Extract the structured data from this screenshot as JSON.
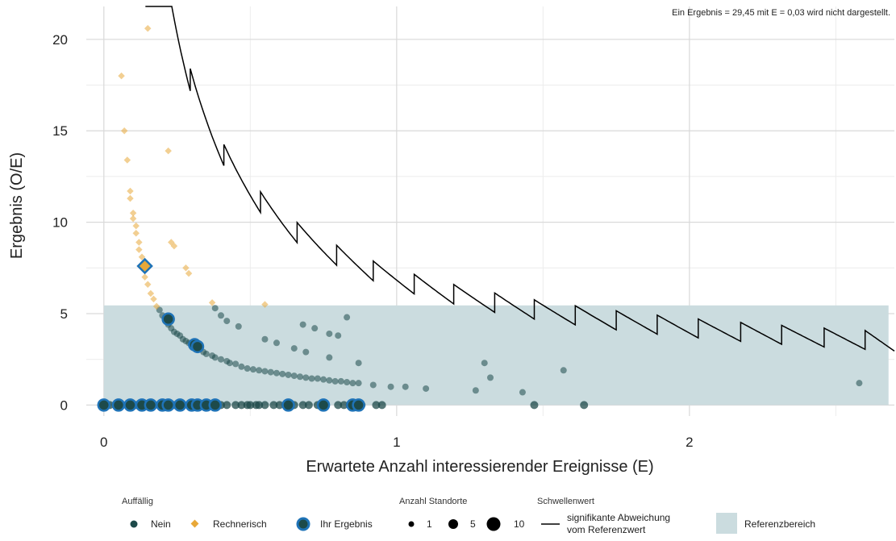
{
  "chart_data": {
    "type": "scatter",
    "note": "Ein Ergebnis = 29,45 mit E = 0,03 wird nicht dargestellt.",
    "xlabel": "Erwartete Anzahl interessierender Ereignisse (E)",
    "ylabel": "Ergebnis (O/E)",
    "xlim": [
      -0.06,
      2.7
    ],
    "ylim": [
      -0.6,
      21.8
    ],
    "x_ticks": [
      "0",
      "1",
      "2"
    ],
    "x_tick_values": [
      0,
      1,
      2
    ],
    "y_ticks": [
      "0",
      "5",
      "10",
      "15",
      "20"
    ],
    "y_tick_values": [
      0,
      5,
      10,
      15,
      20
    ],
    "grid": true,
    "reference_range": {
      "x": [
        0,
        2.68
      ],
      "y": [
        0,
        5.45
      ],
      "color": "#cbdcdf",
      "label": "Referenzbereich"
    },
    "colors": {
      "nein": "#1d4a4a",
      "rechnerisch": "#e8a838",
      "ihr_ergebnis": "#1f73b7",
      "threshold": "#000000"
    },
    "series": [
      {
        "name": "Nein",
        "points": [
          [
            0.0,
            0
          ],
          [
            0.01,
            0
          ],
          [
            0.02,
            0
          ],
          [
            0.04,
            0
          ],
          [
            0.06,
            0
          ],
          [
            0.08,
            0
          ],
          [
            0.09,
            0
          ],
          [
            0.11,
            0
          ],
          [
            0.12,
            0
          ],
          [
            0.14,
            0
          ],
          [
            0.16,
            0
          ],
          [
            0.17,
            0
          ],
          [
            0.19,
            0
          ],
          [
            0.2,
            0
          ],
          [
            0.22,
            0
          ],
          [
            0.24,
            0
          ],
          [
            0.25,
            0
          ],
          [
            0.27,
            0
          ],
          [
            0.29,
            0
          ],
          [
            0.3,
            0
          ],
          [
            0.32,
            0
          ],
          [
            0.35,
            0
          ],
          [
            0.37,
            0
          ],
          [
            0.38,
            0
          ],
          [
            0.4,
            0
          ],
          [
            0.42,
            0
          ],
          [
            0.45,
            0
          ],
          [
            0.47,
            0
          ],
          [
            0.49,
            0
          ],
          [
            0.5,
            0
          ],
          [
            0.52,
            0
          ],
          [
            0.53,
            0
          ],
          [
            0.55,
            0
          ],
          [
            0.58,
            0
          ],
          [
            0.6,
            0
          ],
          [
            0.62,
            0
          ],
          [
            0.65,
            0
          ],
          [
            0.68,
            0
          ],
          [
            0.7,
            0
          ],
          [
            0.73,
            0
          ],
          [
            0.75,
            0
          ],
          [
            0.8,
            0
          ],
          [
            0.82,
            0
          ],
          [
            0.84,
            0
          ],
          [
            0.86,
            0
          ],
          [
            0.87,
            0
          ],
          [
            0.88,
            0
          ],
          [
            0.93,
            0
          ],
          [
            0.95,
            0
          ],
          [
            1.47,
            0
          ],
          [
            1.64,
            0
          ],
          [
            0.19,
            5.2
          ],
          [
            0.2,
            4.9
          ],
          [
            0.21,
            4.6
          ],
          [
            0.22,
            4.4
          ],
          [
            0.23,
            4.2
          ],
          [
            0.24,
            4.0
          ],
          [
            0.25,
            3.9
          ],
          [
            0.26,
            3.8
          ],
          [
            0.27,
            3.6
          ],
          [
            0.28,
            3.5
          ],
          [
            0.29,
            3.4
          ],
          [
            0.31,
            3.1
          ],
          [
            0.32,
            3.05
          ],
          [
            0.34,
            2.9
          ],
          [
            0.35,
            2.8
          ],
          [
            0.37,
            2.7
          ],
          [
            0.38,
            2.6
          ],
          [
            0.4,
            2.5
          ],
          [
            0.42,
            2.4
          ],
          [
            0.43,
            2.3
          ],
          [
            0.45,
            2.25
          ],
          [
            0.47,
            2.1
          ],
          [
            0.49,
            2.0
          ],
          [
            0.51,
            1.95
          ],
          [
            0.53,
            1.9
          ],
          [
            0.55,
            1.85
          ],
          [
            0.57,
            1.8
          ],
          [
            0.59,
            1.75
          ],
          [
            0.61,
            1.7
          ],
          [
            0.63,
            1.65
          ],
          [
            0.65,
            1.6
          ],
          [
            0.67,
            1.55
          ],
          [
            0.69,
            1.5
          ],
          [
            0.71,
            1.45
          ],
          [
            0.73,
            1.45
          ],
          [
            0.75,
            1.4
          ],
          [
            0.77,
            1.35
          ],
          [
            0.79,
            1.3
          ],
          [
            0.81,
            1.3
          ],
          [
            0.83,
            1.25
          ],
          [
            0.85,
            1.2
          ],
          [
            0.87,
            1.2
          ],
          [
            0.38,
            5.3
          ],
          [
            0.4,
            4.9
          ],
          [
            0.42,
            4.6
          ],
          [
            0.46,
            4.3
          ],
          [
            0.55,
            3.6
          ],
          [
            0.59,
            3.4
          ],
          [
            0.65,
            3.1
          ],
          [
            0.69,
            2.9
          ],
          [
            0.68,
            4.4
          ],
          [
            0.72,
            4.2
          ],
          [
            0.77,
            3.9
          ],
          [
            0.8,
            3.8
          ],
          [
            0.77,
            2.6
          ],
          [
            0.83,
            4.8
          ],
          [
            0.87,
            2.3
          ],
          [
            0.92,
            1.1
          ],
          [
            0.98,
            1.0
          ],
          [
            1.03,
            1.0
          ],
          [
            1.1,
            0.9
          ],
          [
            1.27,
            0.8
          ],
          [
            1.3,
            2.3
          ],
          [
            1.32,
            1.5
          ],
          [
            1.43,
            0.7
          ],
          [
            1.57,
            1.9
          ],
          [
            2.58,
            1.2
          ]
        ]
      },
      {
        "name": "Rechnerisch",
        "points": [
          [
            0.06,
            18.0
          ],
          [
            0.07,
            15.0
          ],
          [
            0.08,
            13.4
          ],
          [
            0.09,
            11.7
          ],
          [
            0.09,
            11.3
          ],
          [
            0.1,
            10.5
          ],
          [
            0.1,
            10.2
          ],
          [
            0.11,
            9.8
          ],
          [
            0.11,
            9.4
          ],
          [
            0.12,
            8.9
          ],
          [
            0.12,
            8.5
          ],
          [
            0.13,
            8.1
          ],
          [
            0.14,
            7.4
          ],
          [
            0.14,
            7.0
          ],
          [
            0.15,
            6.6
          ],
          [
            0.16,
            6.1
          ],
          [
            0.17,
            5.8
          ],
          [
            0.18,
            5.4
          ],
          [
            0.15,
            20.6
          ],
          [
            0.22,
            13.9
          ],
          [
            0.23,
            8.9
          ],
          [
            0.24,
            8.7
          ],
          [
            0.28,
            7.5
          ],
          [
            0.29,
            7.2
          ],
          [
            0.37,
            5.6
          ],
          [
            0.55,
            5.5
          ]
        ]
      },
      {
        "name": "Ihr Ergebnis",
        "points": [
          [
            0.0,
            0,
            14
          ],
          [
            0.05,
            0,
            14
          ],
          [
            0.09,
            0,
            14
          ],
          [
            0.13,
            0,
            14
          ],
          [
            0.16,
            0,
            14
          ],
          [
            0.2,
            0,
            14
          ],
          [
            0.22,
            0,
            14
          ],
          [
            0.26,
            0,
            14
          ],
          [
            0.3,
            0,
            14
          ],
          [
            0.32,
            0,
            14
          ],
          [
            0.35,
            0,
            14
          ],
          [
            0.38,
            0,
            14
          ],
          [
            0.63,
            0,
            14
          ],
          [
            0.75,
            0,
            14
          ],
          [
            0.85,
            0,
            14
          ],
          [
            0.87,
            0,
            14
          ],
          [
            0.22,
            4.7,
            14
          ],
          [
            0.31,
            3.3,
            14
          ],
          [
            0.32,
            3.2,
            14
          ],
          [
            0.14,
            7.6,
            14
          ]
        ]
      }
    ],
    "threshold_label": "signifikante Abweichung vom Referenzwert",
    "legend": {
      "auffaellig": {
        "title": "Auffällig",
        "items": [
          {
            "label": "Nein",
            "color": "#1d4a4a"
          },
          {
            "label": "Rechnerisch",
            "color": "#e8a838"
          },
          {
            "label": "Ihr Ergebnis",
            "color": "#1f73b7"
          }
        ]
      },
      "anzahl": {
        "title": "Anzahl Standorte",
        "items": [
          {
            "label": "1",
            "size": 1
          },
          {
            "label": "5",
            "size": 5
          },
          {
            "label": "10",
            "size": 10
          }
        ]
      },
      "schwellenwert": {
        "title": "Schwellenwert",
        "line1": "signifikante Abweichung",
        "line2": "vom Referenzwert"
      },
      "referenz": {
        "label": "Referenzbereich"
      }
    }
  }
}
